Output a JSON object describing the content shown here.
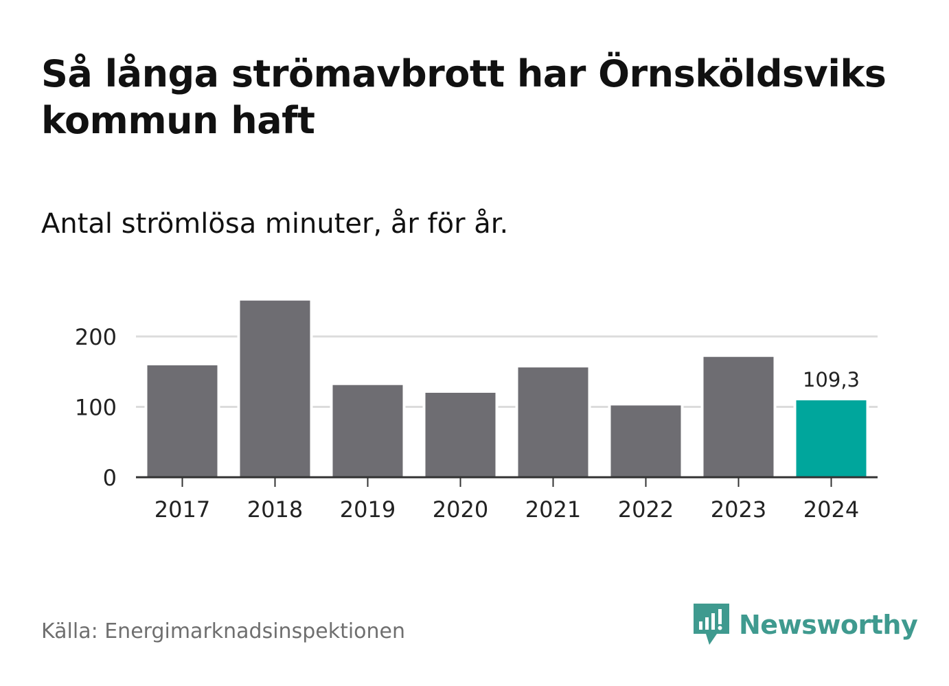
{
  "title": "Så långa strömavbrott har Örnsköldsviks kommun haft",
  "subtitle": "Antal strömlösa minuter, år för år.",
  "source": "Källa: Energimarknadsinspektionen",
  "brand": {
    "name": "Newsworthy",
    "logo_icon": "bar-chart-speech-bubble-icon",
    "color": "#3f9a8f"
  },
  "colors": {
    "bar": "#6e6d72",
    "highlight": "#00a69c",
    "gridline": "#dcdcdc",
    "axis": "#333333"
  },
  "chart_data": {
    "type": "bar",
    "title": "Så långa strömavbrott har Örnsköldsviks kommun haft",
    "subtitle": "Antal strömlösa minuter, år för år.",
    "xlabel": "",
    "ylabel": "",
    "categories": [
      "2017",
      "2018",
      "2019",
      "2020",
      "2021",
      "2022",
      "2023",
      "2024"
    ],
    "values": [
      159,
      251,
      131,
      120,
      156,
      102,
      171,
      109.3
    ],
    "highlight_index": 7,
    "highlight_label": "109,3",
    "ylim": [
      0,
      250
    ],
    "yticks": [
      0,
      100,
      200
    ],
    "ytick_labels": [
      "0",
      "100",
      "200"
    ],
    "grid": true
  }
}
